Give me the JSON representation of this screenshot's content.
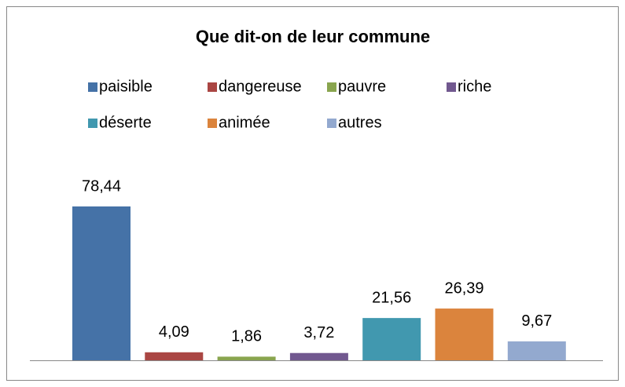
{
  "chart_data": {
    "type": "bar",
    "title": "Que dit-on de leur commune",
    "series": [
      {
        "name": "paisible",
        "color": "#4572a7",
        "values": [
          78.44
        ],
        "value_labels": [
          "78,44"
        ]
      },
      {
        "name": "dangereuse",
        "color": "#aa4643",
        "values": [
          4.09
        ],
        "value_labels": [
          "4,09"
        ]
      },
      {
        "name": "pauvre",
        "color": "#89a54e",
        "values": [
          1.86
        ],
        "value_labels": [
          "1,86"
        ]
      },
      {
        "name": "riche",
        "color": "#71588f",
        "values": [
          3.72
        ],
        "value_labels": [
          "3,72"
        ]
      },
      {
        "name": "déserte",
        "color": "#4198af",
        "values": [
          21.56
        ],
        "value_labels": [
          "21,56"
        ]
      },
      {
        "name": "animée",
        "color": "#db843d",
        "values": [
          26.39
        ],
        "value_labels": [
          "26,39"
        ]
      },
      {
        "name": "autres",
        "color": "#93a9cf",
        "values": [
          9.67
        ],
        "value_labels": [
          "9,67"
        ]
      }
    ]
  }
}
